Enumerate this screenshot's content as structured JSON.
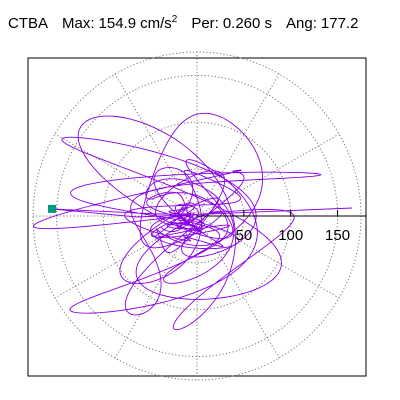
{
  "header": {
    "station": "CTBA",
    "max_label": "Max:",
    "max_value": "154.9",
    "max_unit": "cm/s",
    "max_unit_exp": "2",
    "per_label": "Per:",
    "per_value": "0.260 s",
    "ang_label": "Ang:",
    "ang_value": "177.2"
  },
  "chart_data": {
    "type": "polar-trace",
    "title": "",
    "units": "cm/s2",
    "radial_ticks": [
      50,
      100,
      150
    ],
    "radial_tick_labels": [
      "50",
      "100",
      "150"
    ],
    "rmax": 175,
    "rings": [
      50,
      100,
      150
    ],
    "spokes_deg": [
      0,
      30,
      60,
      90,
      120,
      150,
      180,
      210,
      240,
      270,
      300,
      330
    ],
    "grid": true,
    "max_value": 154.9,
    "max_angle_deg": 177.2,
    "period_s": 0.26,
    "trace_color": "#8a00e6",
    "marker_color": "#009980",
    "grid_color": "#777777"
  }
}
